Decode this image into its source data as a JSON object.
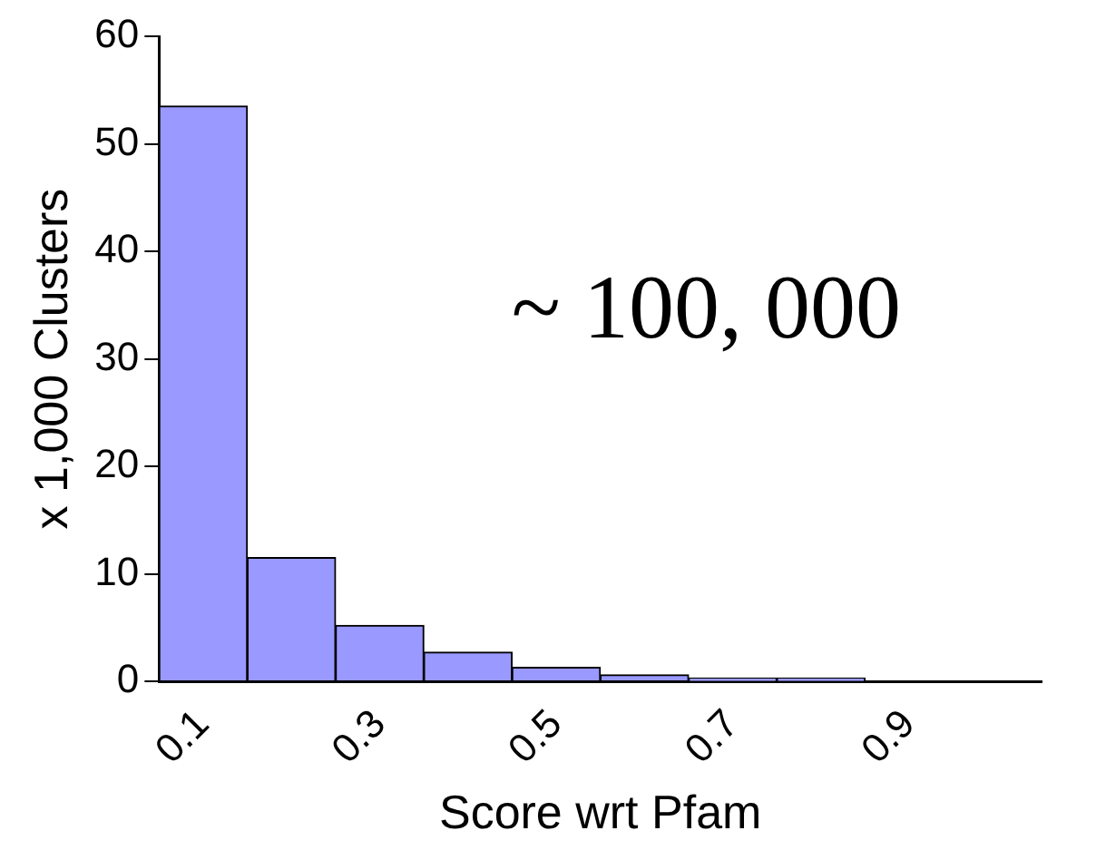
{
  "chart_data": {
    "type": "bar",
    "xlabel": "Score wrt Pfam",
    "ylabel": "x 1,000 Clusters",
    "categories": [
      "0.1",
      null,
      "0.3",
      null,
      "0.5",
      null,
      "0.7",
      null,
      "0.9",
      null
    ],
    "values": [
      53.5,
      11.5,
      5.2,
      2.7,
      1.3,
      0.6,
      0.3,
      0.3,
      null,
      null
    ],
    "color": "#9999ff",
    "ylim": [
      0,
      60
    ],
    "yticks": [
      0,
      10,
      20,
      30,
      40,
      50,
      60
    ],
    "grid": false,
    "legend": false,
    "annotations": [
      "~ 100, 000"
    ]
  }
}
